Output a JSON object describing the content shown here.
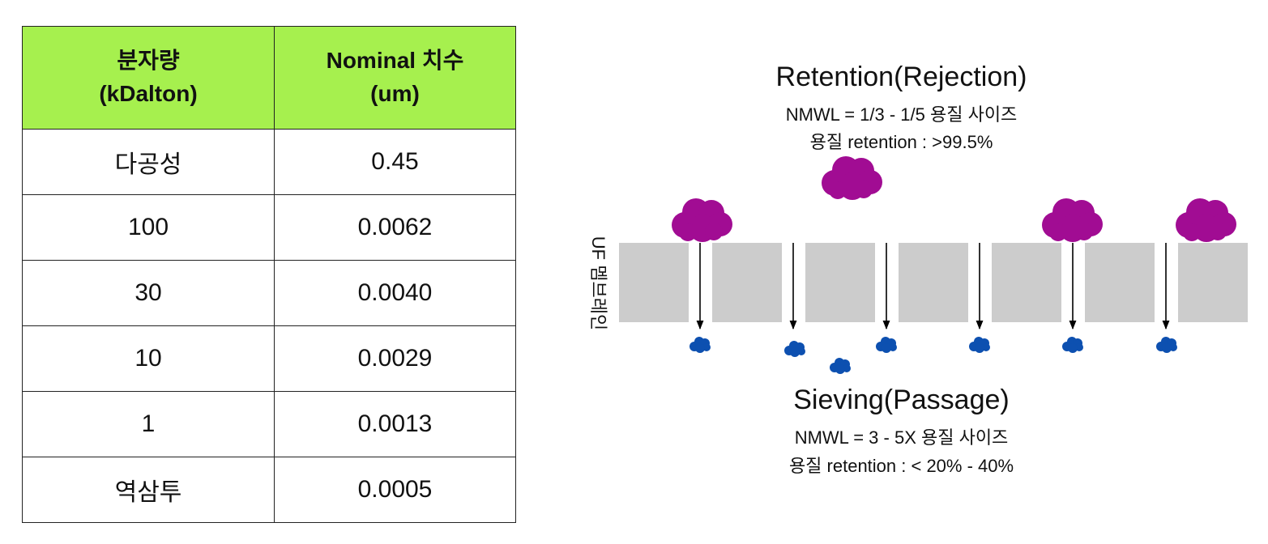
{
  "table": {
    "headers": [
      {
        "line1": "분자량",
        "line2": "(kDalton)"
      },
      {
        "line1": "Nominal 치수",
        "line2": "(um)"
      }
    ],
    "rows": [
      {
        "mw": "다공성",
        "size": "0.45"
      },
      {
        "mw": "100",
        "size": "0.0062"
      },
      {
        "mw": "30",
        "size": "0.0040"
      },
      {
        "mw": "10",
        "size": "0.0029"
      },
      {
        "mw": "1",
        "size": "0.0013"
      },
      {
        "mw": "역삼투",
        "size": "0.0005"
      }
    ]
  },
  "diagram": {
    "retention": {
      "title": "Retention(Rejection)",
      "line1": "NMWL = 1/3 - 1/5 용질 사이즈",
      "line2": "용질 retention : >99.5%"
    },
    "sieving": {
      "title": "Sieving(Passage)",
      "line1": "NMWL = 3 - 5X 용질 사이즈",
      "line2": "용질 retention : < 20% - 40%"
    },
    "membrane_label": "UF 멤브레인",
    "colors": {
      "large_solute": "#a10c93",
      "small_solute": "#0d50b0",
      "membrane": "#cccccc",
      "table_header": "#a6f04e"
    }
  }
}
